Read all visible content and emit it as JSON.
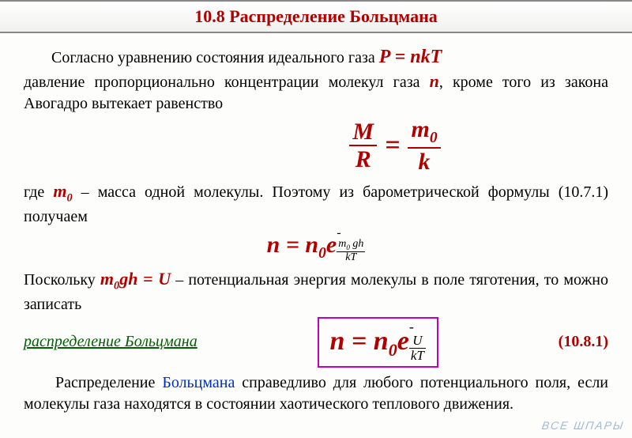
{
  "title": "10.8   Распределение Больцмана",
  "p1_a": "Согласно уравнению состояния идеального газа  ",
  "p1_eq": "P  =  nkT",
  "p2_a": "давление пропорционально концентрации молекул газа ",
  "p2_n": "n",
  "p2_b": ", кроме того из закона Авогадро вытекает равенство",
  "frac1": {
    "num1": "M",
    "den1": "R",
    "eq": "=",
    "num2": "m",
    "num2sub": "0",
    "den2": "k"
  },
  "p3_a": "где ",
  "p3_m0": "m",
  "p3_m0sub": "0",
  "p3_b": " – масса одной молекулы. Поэтому из барометрической формулы (10.7.1)  получаем",
  "eq2_base_a": "n = n",
  "eq2_base_sub": "0",
  "eq2_base_b": "e",
  "eq2_minus": "-",
  "eq2_exp_num_a": "m",
  "eq2_exp_num_sub": "0",
  "eq2_exp_num_b": " gh",
  "eq2_exp_den": "kT",
  "p4_a": "Поскольку  ",
  "p4_e1": "m",
  "p4_e1sub": "0",
  "p4_e2": "gh  =  U",
  "p4_b": " – потенциальная энергия молекулы в поле тяготения, то можно записать",
  "box_left": "распределение Больцмана",
  "eq3_base_a": "n = n",
  "eq3_base_sub": "0",
  "eq3_base_b": "e",
  "eq3_minus": "-",
  "eq3_exp_num": "U",
  "eq3_exp_den": "kT",
  "eq3_num": "(10.8.1)",
  "p5_a": "Распределение ",
  "p5_blue": "Больцмана",
  "p5_b": " справедливо для любого потенциального поля, если молекулы газа находятся в состоянии хаотического теплового движения.",
  "watermark": "ВСЕ ШПАРЫ",
  "colors": {
    "red": "#b00000",
    "blue": "#0030c0",
    "green": "#006000",
    "box_border": "#c000c0",
    "text": "#000000",
    "bg": "#fdfdfb"
  }
}
